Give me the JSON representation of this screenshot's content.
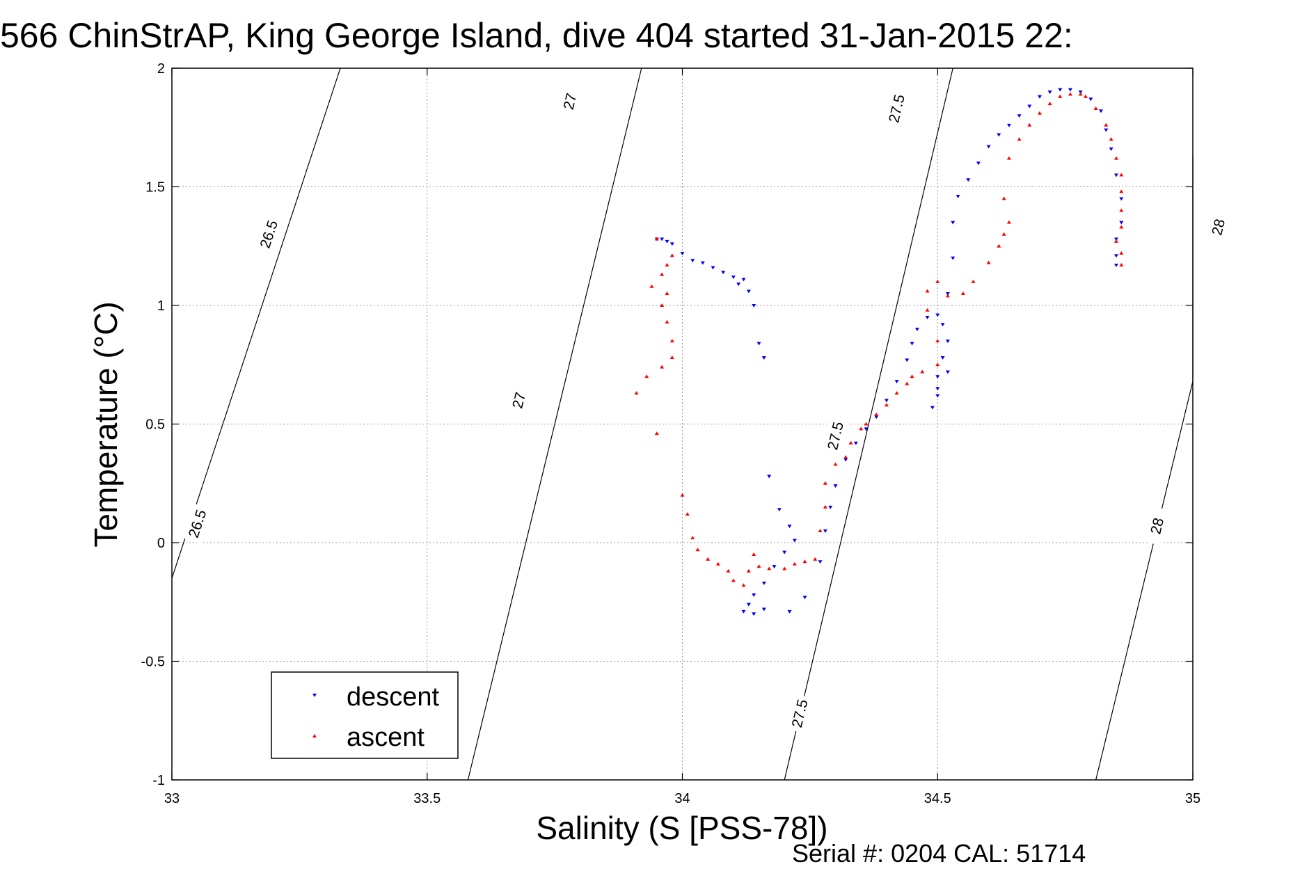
{
  "chart_data": {
    "type": "scatter",
    "title": "566 ChinStrAP, King George Island, dive 404 started 31-Jan-2015 22:",
    "xlabel": "Salinity (S [PSS-78])",
    "ylabel": "Temperature (°C)",
    "xlim": [
      33,
      35
    ],
    "ylim": [
      -1,
      2
    ],
    "xticks": [
      "33",
      "33.5",
      "34",
      "34.5",
      "35"
    ],
    "yticks": [
      "-1",
      "-0.5",
      "0",
      "0.5",
      "1",
      "1.5",
      "2"
    ],
    "grid": true,
    "legend_position": "bottom-left",
    "footer": "Serial #: 0204  CAL: 51714",
    "series": [
      {
        "name": "descent",
        "color": "#0000ff",
        "marker": "triangle-down",
        "points": [
          [
            33.95,
            1.28
          ],
          [
            33.96,
            1.28
          ],
          [
            33.97,
            1.27
          ],
          [
            33.98,
            1.26
          ],
          [
            34.0,
            1.22
          ],
          [
            34.02,
            1.19
          ],
          [
            34.04,
            1.18
          ],
          [
            34.06,
            1.16
          ],
          [
            34.08,
            1.14
          ],
          [
            34.1,
            1.12
          ],
          [
            34.12,
            1.11
          ],
          [
            34.11,
            1.09
          ],
          [
            34.13,
            1.06
          ],
          [
            34.14,
            1.0
          ],
          [
            34.15,
            0.84
          ],
          [
            34.16,
            0.78
          ],
          [
            34.17,
            0.28
          ],
          [
            34.19,
            0.14
          ],
          [
            34.21,
            0.07
          ],
          [
            34.22,
            0.01
          ],
          [
            34.2,
            -0.04
          ],
          [
            34.18,
            -0.1
          ],
          [
            34.16,
            -0.17
          ],
          [
            34.14,
            -0.22
          ],
          [
            34.13,
            -0.26
          ],
          [
            34.12,
            -0.29
          ],
          [
            34.14,
            -0.3
          ],
          [
            34.16,
            -0.28
          ],
          [
            34.21,
            -0.29
          ],
          [
            34.24,
            -0.23
          ],
          [
            34.27,
            -0.08
          ],
          [
            34.28,
            0.05
          ],
          [
            34.29,
            0.15
          ],
          [
            34.3,
            0.24
          ],
          [
            34.32,
            0.35
          ],
          [
            34.34,
            0.42
          ],
          [
            34.36,
            0.48
          ],
          [
            34.38,
            0.53
          ],
          [
            34.4,
            0.6
          ],
          [
            34.42,
            0.68
          ],
          [
            34.44,
            0.77
          ],
          [
            34.45,
            0.84
          ],
          [
            34.46,
            0.9
          ],
          [
            34.48,
            0.95
          ],
          [
            34.5,
            0.96
          ],
          [
            34.51,
            0.92
          ],
          [
            34.52,
            0.85
          ],
          [
            34.51,
            0.78
          ],
          [
            34.5,
            0.7
          ],
          [
            34.5,
            0.62
          ],
          [
            34.49,
            0.57
          ],
          [
            34.5,
            0.65
          ],
          [
            34.52,
            0.72
          ],
          [
            34.52,
            1.05
          ],
          [
            34.53,
            1.2
          ],
          [
            34.53,
            1.35
          ],
          [
            34.54,
            1.46
          ],
          [
            34.56,
            1.53
          ],
          [
            34.58,
            1.6
          ],
          [
            34.6,
            1.67
          ],
          [
            34.62,
            1.72
          ],
          [
            34.64,
            1.76
          ],
          [
            34.66,
            1.8
          ],
          [
            34.68,
            1.84
          ],
          [
            34.7,
            1.88
          ],
          [
            34.72,
            1.9
          ],
          [
            34.74,
            1.91
          ],
          [
            34.76,
            1.91
          ],
          [
            34.78,
            1.9
          ],
          [
            34.8,
            1.87
          ],
          [
            34.82,
            1.82
          ],
          [
            34.83,
            1.74
          ],
          [
            34.84,
            1.66
          ],
          [
            34.85,
            1.55
          ],
          [
            34.86,
            1.45
          ],
          [
            34.86,
            1.35
          ],
          [
            34.85,
            1.28
          ],
          [
            34.85,
            1.21
          ],
          [
            34.85,
            1.17
          ]
        ]
      },
      {
        "name": "ascent",
        "color": "#ff0000",
        "marker": "triangle-up",
        "points": [
          [
            33.95,
            1.28
          ],
          [
            33.98,
            1.21
          ],
          [
            33.97,
            1.17
          ],
          [
            33.96,
            1.13
          ],
          [
            33.94,
            1.08
          ],
          [
            33.97,
            1.05
          ],
          [
            33.96,
            1.0
          ],
          [
            33.97,
            0.93
          ],
          [
            33.98,
            0.85
          ],
          [
            33.98,
            0.78
          ],
          [
            33.96,
            0.74
          ],
          [
            33.93,
            0.7
          ],
          [
            33.91,
            0.63
          ],
          [
            33.95,
            0.46
          ],
          [
            34.0,
            0.2
          ],
          [
            34.01,
            0.12
          ],
          [
            34.02,
            0.02
          ],
          [
            34.03,
            -0.03
          ],
          [
            34.05,
            -0.07
          ],
          [
            34.07,
            -0.09
          ],
          [
            34.09,
            -0.12
          ],
          [
            34.1,
            -0.16
          ],
          [
            34.12,
            -0.18
          ],
          [
            34.13,
            -0.12
          ],
          [
            34.14,
            -0.05
          ],
          [
            34.15,
            -0.1
          ],
          [
            34.17,
            -0.11
          ],
          [
            34.2,
            -0.11
          ],
          [
            34.22,
            -0.09
          ],
          [
            34.24,
            -0.08
          ],
          [
            34.26,
            -0.07
          ],
          [
            34.27,
            0.05
          ],
          [
            34.28,
            0.15
          ],
          [
            34.28,
            0.25
          ],
          [
            34.3,
            0.33
          ],
          [
            34.32,
            0.36
          ],
          [
            34.33,
            0.42
          ],
          [
            34.35,
            0.48
          ],
          [
            34.36,
            0.5
          ],
          [
            34.38,
            0.54
          ],
          [
            34.4,
            0.58
          ],
          [
            34.42,
            0.63
          ],
          [
            34.44,
            0.67
          ],
          [
            34.45,
            0.7
          ],
          [
            34.47,
            0.72
          ],
          [
            34.5,
            0.75
          ],
          [
            34.5,
            0.85
          ],
          [
            34.48,
            0.98
          ],
          [
            34.48,
            1.06
          ],
          [
            34.5,
            1.1
          ],
          [
            34.52,
            1.04
          ],
          [
            34.55,
            1.05
          ],
          [
            34.57,
            1.1
          ],
          [
            34.6,
            1.18
          ],
          [
            34.62,
            1.25
          ],
          [
            34.63,
            1.3
          ],
          [
            34.64,
            1.35
          ],
          [
            34.63,
            1.45
          ],
          [
            34.64,
            1.62
          ],
          [
            34.66,
            1.7
          ],
          [
            34.68,
            1.76
          ],
          [
            34.7,
            1.81
          ],
          [
            34.72,
            1.85
          ],
          [
            34.74,
            1.88
          ],
          [
            34.76,
            1.89
          ],
          [
            34.78,
            1.89
          ],
          [
            34.79,
            1.88
          ],
          [
            34.81,
            1.83
          ],
          [
            34.83,
            1.76
          ],
          [
            34.84,
            1.7
          ],
          [
            34.85,
            1.62
          ],
          [
            34.86,
            1.55
          ],
          [
            34.86,
            1.48
          ],
          [
            34.86,
            1.4
          ],
          [
            34.86,
            1.33
          ],
          [
            34.85,
            1.27
          ],
          [
            34.86,
            1.22
          ],
          [
            34.86,
            1.17
          ]
        ]
      }
    ],
    "density_contours": [
      {
        "label": "26.5",
        "points": [
          [
            33.0,
            -0.15
          ],
          [
            33.33,
            2.0
          ]
        ],
        "label_positions": [
          [
            33.19,
            1.3
          ],
          [
            33.05,
            0.08
          ]
        ]
      },
      {
        "label": "27",
        "points": [
          [
            33.58,
            -1.0
          ],
          [
            33.92,
            2.0
          ]
        ],
        "label_positions": [
          [
            33.55,
            -0.72
          ],
          [
            33.68,
            0.6
          ],
          [
            33.78,
            1.86
          ]
        ]
      },
      {
        "label": "27.5",
        "points": [
          [
            34.2,
            -1.0
          ],
          [
            34.53,
            2.0
          ]
        ],
        "label_positions": [
          [
            34.23,
            -0.72
          ],
          [
            34.3,
            0.45
          ],
          [
            34.42,
            1.83
          ]
        ]
      },
      {
        "label": "28",
        "points": [
          [
            34.81,
            -1.0
          ],
          [
            35.0,
            0.68
          ],
          [
            35.0,
            1.63
          ]
        ],
        "label_positions": [
          [
            34.93,
            0.07
          ],
          [
            35.05,
            1.33
          ]
        ]
      }
    ]
  }
}
